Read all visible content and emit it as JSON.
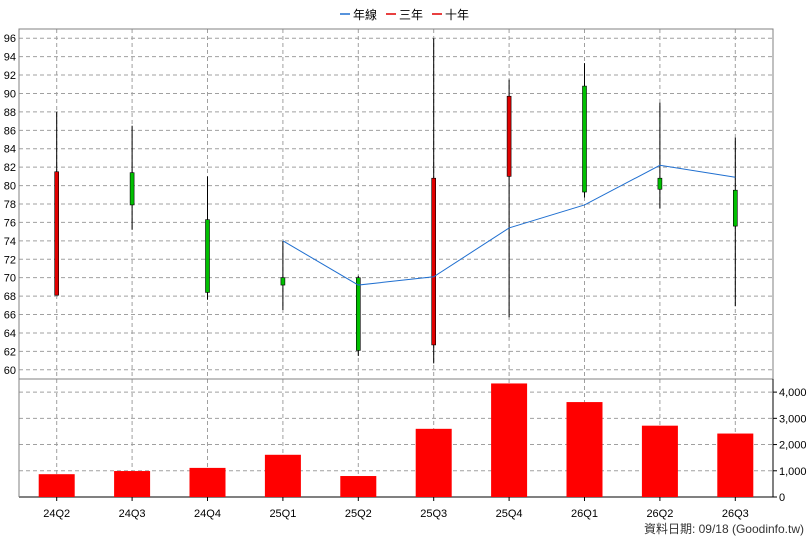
{
  "legend": [
    {
      "label": "年線",
      "color": "#1f6fd0"
    },
    {
      "label": "三年",
      "color": "#e00000"
    },
    {
      "label": "十年",
      "color": "#e00000"
    }
  ],
  "footer": "資料日期: 09/18  (Goodinfo.tw)",
  "chart_data": {
    "type": "candlestick",
    "categories": [
      "24Q2",
      "24Q3",
      "24Q4",
      "25Q1",
      "25Q2",
      "25Q3",
      "25Q4",
      "26Q1",
      "26Q2",
      "26Q3"
    ],
    "price": {
      "ylim": [
        59,
        97
      ],
      "yticks": [
        60,
        62,
        64,
        66,
        68,
        70,
        72,
        74,
        76,
        78,
        80,
        82,
        84,
        86,
        88,
        90,
        92,
        94,
        96
      ],
      "candles": [
        {
          "open": 68.1,
          "high": 88.0,
          "low": 68.1,
          "close": 81.5
        },
        {
          "open": 81.4,
          "high": 86.5,
          "low": 75.2,
          "close": 77.9
        },
        {
          "open": 76.3,
          "high": 81.0,
          "low": 67.6,
          "close": 68.4
        },
        {
          "open": 70.0,
          "high": 74.0,
          "low": 66.5,
          "close": 69.2
        },
        {
          "open": 70.0,
          "high": 70.2,
          "low": 61.5,
          "close": 62.1
        },
        {
          "open": 62.7,
          "high": 96.0,
          "low": 60.7,
          "close": 80.8
        },
        {
          "open": 81.0,
          "high": 91.5,
          "low": 65.7,
          "close": 89.7
        },
        {
          "open": 90.8,
          "high": 93.3,
          "low": 78.7,
          "close": 79.3
        },
        {
          "open": 80.8,
          "high": 89.0,
          "low": 77.5,
          "close": 79.6
        },
        {
          "open": 79.5,
          "high": 85.2,
          "low": 66.9,
          "close": 75.6
        }
      ],
      "line": {
        "name": "年線",
        "values": [
          null,
          null,
          null,
          74.0,
          69.2,
          70.1,
          75.4,
          77.9,
          82.2,
          80.9
        ]
      }
    },
    "volume": {
      "ylim": [
        0,
        4500
      ],
      "yticks": [
        0,
        1000,
        2000,
        3000,
        4000
      ],
      "ytick_labels": [
        "0",
        "1,000",
        "2,000",
        "3,000",
        "4,000"
      ],
      "values": [
        870,
        990,
        1110,
        1610,
        800,
        2600,
        4330,
        3620,
        2720,
        2420
      ]
    },
    "colors": {
      "up": "#e00000",
      "down": "#00c000",
      "line": "#1f6fd0",
      "volume": "#ff0000"
    }
  }
}
